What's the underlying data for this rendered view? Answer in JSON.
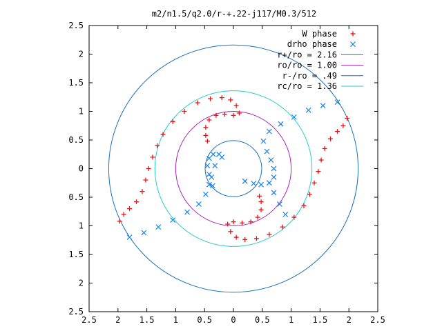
{
  "chart_data": {
    "type": "scatter",
    "title": "m2/n1.5/q2.0/r-+.22-j117/M0.3/512",
    "xlabel": "",
    "ylabel": "",
    "xlim": [
      -2.5,
      2.5
    ],
    "ylim": [
      -2.5,
      2.5
    ],
    "x_tick_values": [
      -2.5,
      -2,
      -1.5,
      -1,
      -0.5,
      0,
      0.5,
      1,
      1.5,
      2,
      2.5
    ],
    "x_tick_labels": [
      "2.5",
      "2",
      "1.5",
      "1",
      "0.5",
      "0",
      "0.5",
      "1",
      "1.5",
      "2",
      "2.5"
    ],
    "y_tick_values": [
      2.5,
      2,
      1.5,
      1,
      0.5,
      0,
      -0.5,
      -1,
      -1.5,
      -2,
      -2.5
    ],
    "y_tick_labels": [
      "2.5",
      "2",
      "1.5",
      "1",
      "0.5",
      "0",
      "0.5",
      "1",
      "1.5",
      "2",
      "2.5"
    ],
    "grid": false,
    "legend_position": "top-right",
    "series": [
      {
        "name": "W phase",
        "marker": "plus",
        "color": "#ee1111",
        "points": [
          [
            -1.97,
            -0.92
          ],
          [
            -1.9,
            -0.8
          ],
          [
            -1.8,
            -0.7
          ],
          [
            -1.68,
            -0.58
          ],
          [
            -1.58,
            -0.4
          ],
          [
            -1.52,
            -0.2
          ],
          [
            -1.47,
            0.0
          ],
          [
            -1.4,
            0.2
          ],
          [
            -1.32,
            0.4
          ],
          [
            -1.22,
            0.6
          ],
          [
            -1.05,
            0.82
          ],
          [
            -0.85,
            1.0
          ],
          [
            -0.62,
            1.15
          ],
          [
            -0.4,
            1.22
          ],
          [
            -0.2,
            1.24
          ],
          [
            -0.05,
            1.2
          ],
          [
            0.05,
            1.1
          ],
          [
            0.1,
            0.97
          ],
          [
            0.0,
            0.93
          ],
          [
            -0.15,
            0.95
          ],
          [
            -0.3,
            0.93
          ],
          [
            -0.42,
            0.85
          ],
          [
            -0.48,
            0.72
          ],
          [
            -0.48,
            0.58
          ],
          [
            -0.45,
            0.48
          ],
          [
            1.97,
            0.88
          ],
          [
            1.9,
            0.75
          ],
          [
            1.8,
            0.65
          ],
          [
            1.68,
            0.52
          ],
          [
            1.58,
            0.35
          ],
          [
            1.52,
            0.15
          ],
          [
            1.47,
            -0.05
          ],
          [
            1.4,
            -0.25
          ],
          [
            1.32,
            -0.45
          ],
          [
            1.22,
            -0.65
          ],
          [
            1.05,
            -0.85
          ],
          [
            0.85,
            -1.02
          ],
          [
            0.62,
            -1.15
          ],
          [
            0.4,
            -1.22
          ],
          [
            0.2,
            -1.24
          ],
          [
            0.05,
            -1.2
          ],
          [
            -0.05,
            -1.1
          ],
          [
            -0.1,
            -0.97
          ],
          [
            0.0,
            -0.93
          ],
          [
            0.15,
            -0.95
          ],
          [
            0.3,
            -0.93
          ],
          [
            0.42,
            -0.85
          ],
          [
            0.48,
            -0.72
          ],
          [
            0.48,
            -0.58
          ],
          [
            0.45,
            -0.48
          ]
        ]
      },
      {
        "name": "drho phase",
        "marker": "cross",
        "color": "#2288ee",
        "points": [
          [
            -1.8,
            -1.2
          ],
          [
            -1.55,
            -1.12
          ],
          [
            -1.3,
            -1.02
          ],
          [
            -1.05,
            -0.9
          ],
          [
            -0.8,
            -0.76
          ],
          [
            -0.6,
            -0.62
          ],
          [
            -0.48,
            -0.45
          ],
          [
            -0.42,
            -0.28
          ],
          [
            -0.42,
            -0.1
          ],
          [
            -0.45,
            0.05
          ],
          [
            -0.42,
            0.18
          ],
          [
            -0.35,
            0.25
          ],
          [
            -0.25,
            0.25
          ],
          [
            -0.2,
            0.2
          ],
          [
            -0.32,
            0.05
          ],
          [
            -0.38,
            -0.15
          ],
          [
            -0.36,
            -0.3
          ],
          [
            1.8,
            1.16
          ],
          [
            1.55,
            1.1
          ],
          [
            1.3,
            1.02
          ],
          [
            1.05,
            0.9
          ],
          [
            0.82,
            0.78
          ],
          [
            0.62,
            0.65
          ],
          [
            0.52,
            0.48
          ],
          [
            0.58,
            0.3
          ],
          [
            0.65,
            0.15
          ],
          [
            0.7,
            0.0
          ],
          [
            0.7,
            -0.15
          ],
          [
            0.62,
            -0.25
          ],
          [
            0.48,
            -0.28
          ],
          [
            0.35,
            -0.26
          ],
          [
            0.2,
            -0.22
          ],
          [
            0.7,
            -0.42
          ],
          [
            0.8,
            -0.62
          ],
          [
            0.9,
            -0.8
          ]
        ]
      }
    ],
    "circles": [
      {
        "name": "r+/ro = 2.16",
        "r": 2.16,
        "color": "#1a6fb8"
      },
      {
        "name": "ro/ro = 1.00",
        "r": 1.0,
        "color": "#aa22bb"
      },
      {
        "name": "r-/ro = .49",
        "r": 0.49,
        "color": "#1a6fb8"
      },
      {
        "name": "rc/ro = 1.36",
        "r": 1.36,
        "color": "#22cccc"
      }
    ],
    "legend_labels": [
      "W phase",
      "drho phase",
      "r+/ro = 2.16",
      "ro/ro = 1.00",
      "r-/ro = .49",
      "rc/ro = 1.36"
    ]
  }
}
